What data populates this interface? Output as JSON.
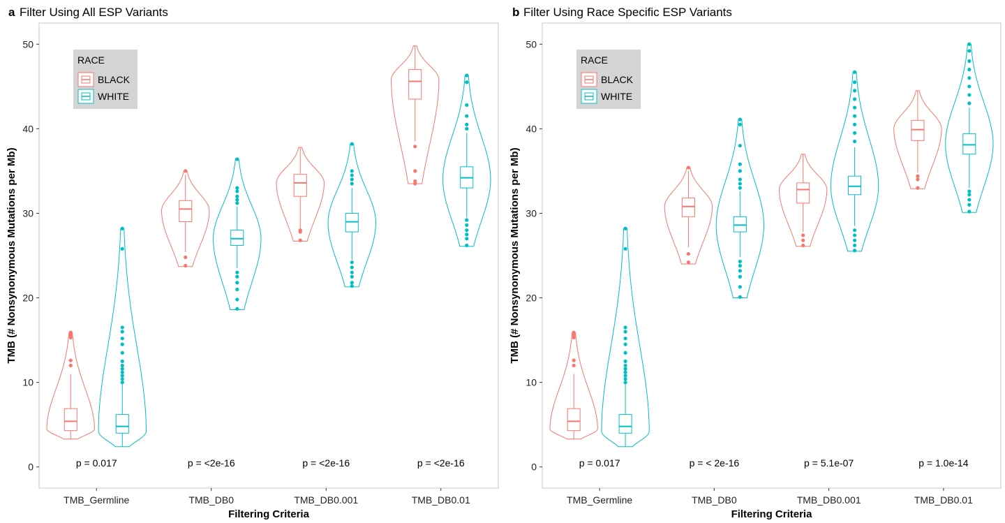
{
  "colors": {
    "BLACK": "#F8766D",
    "WHITE": "#00BFC4",
    "legend_bg": "#D4D4D4",
    "panel_border": "#C8C8C8"
  },
  "chart_data": [
    {
      "type": "violin",
      "panel_label": "a",
      "title": "Filter Using All ESP Variants",
      "xlabel": "Filtering Criteria",
      "ylabel": "TMB (# Nonsynonymous Mutations per Mb)",
      "ylim": [
        -2.5,
        52.5
      ],
      "yticks": [
        0,
        10,
        20,
        30,
        40,
        50
      ],
      "grid": false,
      "legend": {
        "title": "RACE",
        "entries": [
          "BLACK",
          "WHITE"
        ],
        "placement": "top-left"
      },
      "categories": [
        "TMB_Germline",
        "TMB_DB0",
        "TMB_DB0.001",
        "TMB_DB0.01"
      ],
      "pvalues": [
        "p = 0.017",
        "p = <2e-16",
        "p = <2e-16",
        "p = <2e-16"
      ],
      "series": [
        {
          "name": "BLACK",
          "groups": [
            {
              "min": 3.3,
              "q1": 4.3,
              "median": 5.4,
              "q3": 6.9,
              "max": 15.9,
              "peak": 4.5,
              "wlo": 3.3,
              "whi": 11.0,
              "outliers": [
                12.0,
                12.6,
                15.3,
                15.6,
                15.9
              ]
            },
            {
              "min": 23.7,
              "q1": 29.0,
              "median": 30.5,
              "q3": 31.5,
              "max": 35.0,
              "peak": 30.3,
              "wlo": 25.4,
              "whi": 34.6,
              "outliers": [
                23.8,
                24.8,
                35.0
              ]
            },
            {
              "min": 26.7,
              "q1": 32.0,
              "median": 33.6,
              "q3": 34.6,
              "max": 37.8,
              "peak": 33.6,
              "wlo": 28.2,
              "whi": 37.8,
              "outliers": [
                26.8,
                27.8,
                28.0
              ]
            },
            {
              "min": 33.5,
              "q1": 43.5,
              "median": 45.6,
              "q3": 47.0,
              "max": 49.8,
              "peak": 45.8,
              "wlo": 38.5,
              "whi": 49.8,
              "outliers": [
                33.5,
                33.8,
                35.0,
                37.9
              ]
            }
          ]
        },
        {
          "name": "WHITE",
          "groups": [
            {
              "min": 2.4,
              "q1": 4.0,
              "median": 4.8,
              "q3": 6.2,
              "max": 28.2,
              "peak": 4.2,
              "wlo": 2.4,
              "whi": 9.8,
              "outliers": [
                10.0,
                10.4,
                10.8,
                11.2,
                11.6,
                12.0,
                12.5,
                13.5,
                14.5,
                15.2,
                16.0,
                16.5,
                25.8,
                28.2
              ]
            },
            {
              "min": 18.6,
              "q1": 26.2,
              "median": 27.0,
              "q3": 28.0,
              "max": 36.4,
              "peak": 27.0,
              "wlo": 23.5,
              "whi": 30.8,
              "outliers": [
                18.7,
                19.8,
                21.0,
                21.8,
                22.5,
                23.0,
                31.2,
                31.6,
                32.0,
                32.6,
                33.0,
                36.4
              ]
            },
            {
              "min": 21.3,
              "q1": 27.8,
              "median": 29.0,
              "q3": 30.0,
              "max": 38.2,
              "peak": 28.9,
              "wlo": 24.5,
              "whi": 33.0,
              "outliers": [
                21.4,
                21.8,
                22.5,
                23.0,
                23.6,
                24.2,
                33.5,
                34.0,
                34.5,
                35.0,
                38.2
              ]
            },
            {
              "min": 26.1,
              "q1": 33.0,
              "median": 34.2,
              "q3": 35.5,
              "max": 46.3,
              "peak": 34.0,
              "wlo": 29.5,
              "whi": 39.5,
              "outliers": [
                26.2,
                27.0,
                27.5,
                28.0,
                28.6,
                29.2,
                40.0,
                40.5,
                41.5,
                42.8,
                45.5,
                46.3
              ]
            }
          ]
        }
      ]
    },
    {
      "type": "violin",
      "panel_label": "b",
      "title": "Filter Using Race Specific ESP Variants",
      "xlabel": "Filtering Criteria",
      "ylabel": "TMB (# Nonsynonymous Mutations per Mb)",
      "ylim": [
        -2.5,
        52.5
      ],
      "yticks": [
        0,
        10,
        20,
        30,
        40,
        50
      ],
      "grid": false,
      "legend": {
        "title": "RACE",
        "entries": [
          "BLACK",
          "WHITE"
        ],
        "placement": "top-left"
      },
      "categories": [
        "TMB_Germline",
        "TMB_DB0",
        "TMB_DB0.001",
        "TMB_DB0.01"
      ],
      "pvalues": [
        "p = 0.017",
        "p = < 2e-16",
        "p = 5.1e-07",
        "p = 1.0e-14"
      ],
      "series": [
        {
          "name": "BLACK",
          "groups": [
            {
              "min": 3.3,
              "q1": 4.3,
              "median": 5.4,
              "q3": 6.9,
              "max": 15.9,
              "peak": 4.5,
              "wlo": 3.3,
              "whi": 11.0,
              "outliers": [
                12.0,
                12.6,
                15.3,
                15.6,
                15.9
              ]
            },
            {
              "min": 24.0,
              "q1": 29.6,
              "median": 30.8,
              "q3": 31.8,
              "max": 35.4,
              "peak": 30.8,
              "wlo": 26.0,
              "whi": 35.0,
              "outliers": [
                24.2,
                25.2,
                35.4
              ]
            },
            {
              "min": 26.1,
              "q1": 31.2,
              "median": 32.8,
              "q3": 33.6,
              "max": 37.0,
              "peak": 32.8,
              "wlo": 27.8,
              "whi": 37.0,
              "outliers": [
                26.2,
                26.8,
                27.4
              ]
            },
            {
              "min": 32.9,
              "q1": 38.6,
              "median": 39.9,
              "q3": 41.0,
              "max": 44.5,
              "peak": 40.0,
              "wlo": 34.8,
              "whi": 44.5,
              "outliers": [
                33.0,
                34.0,
                34.4
              ]
            }
          ]
        },
        {
          "name": "WHITE",
          "groups": [
            {
              "min": 2.4,
              "q1": 4.0,
              "median": 4.8,
              "q3": 6.2,
              "max": 28.2,
              "peak": 4.2,
              "wlo": 2.4,
              "whi": 9.8,
              "outliers": [
                10.0,
                10.4,
                10.8,
                11.2,
                11.6,
                12.0,
                12.5,
                13.5,
                14.5,
                15.2,
                16.0,
                16.5,
                25.8,
                28.2
              ]
            },
            {
              "min": 20.0,
              "q1": 27.8,
              "median": 28.6,
              "q3": 29.6,
              "max": 41.1,
              "peak": 28.6,
              "wlo": 24.8,
              "whi": 32.6,
              "outliers": [
                20.1,
                21.3,
                22.5,
                23.2,
                23.8,
                24.3,
                33.0,
                33.5,
                34.0,
                35.0,
                35.8,
                38.0,
                40.5,
                41.1
              ]
            },
            {
              "min": 25.5,
              "q1": 32.2,
              "median": 33.2,
              "q3": 34.4,
              "max": 46.7,
              "peak": 33.2,
              "wlo": 28.5,
              "whi": 37.8,
              "outliers": [
                25.6,
                26.2,
                26.8,
                27.4,
                28.0,
                38.5,
                39.5,
                40.5,
                41.5,
                42.5,
                43.5,
                44.5,
                45.5,
                46.7
              ]
            },
            {
              "min": 30.1,
              "q1": 37.0,
              "median": 38.1,
              "q3": 39.4,
              "max": 50.0,
              "peak": 38.2,
              "wlo": 33.0,
              "whi": 42.5,
              "outliers": [
                30.2,
                31.0,
                31.6,
                32.2,
                32.6,
                43.0,
                44.0,
                45.0,
                46.0,
                47.0,
                48.0,
                49.2,
                50.0
              ]
            }
          ]
        }
      ]
    }
  ]
}
